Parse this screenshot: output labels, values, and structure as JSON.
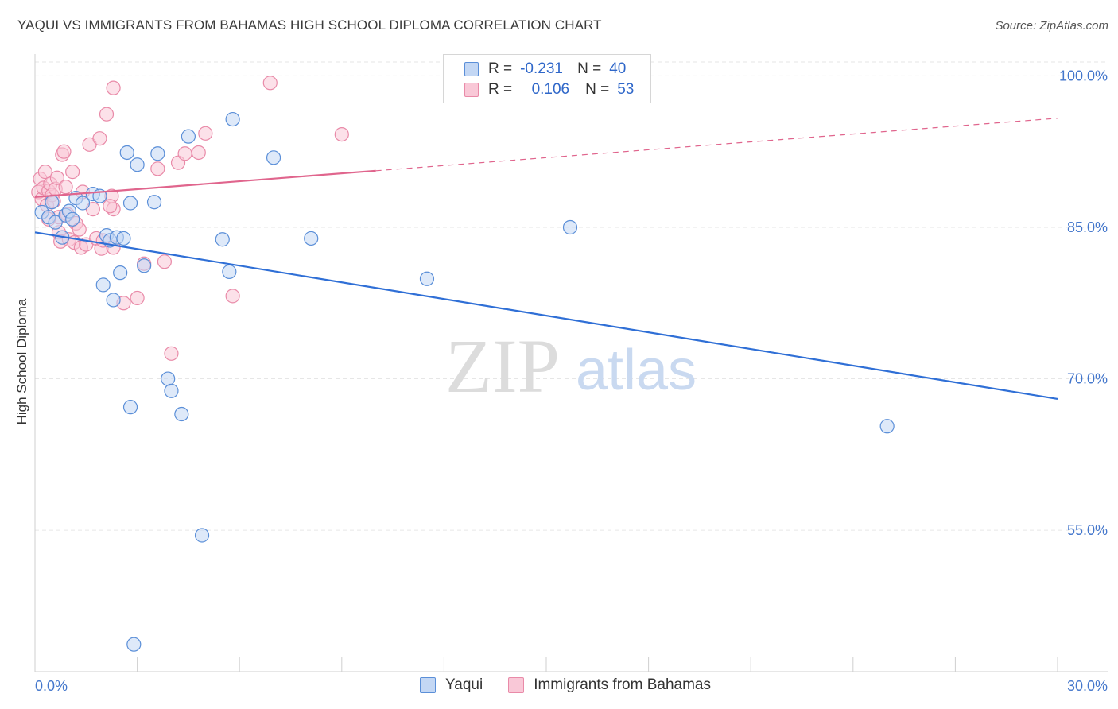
{
  "title": "YAQUI VS IMMIGRANTS FROM BAHAMAS HIGH SCHOOL DIPLOMA CORRELATION CHART",
  "source": "Source: ZipAtlas.com",
  "watermark": {
    "zip": "ZIP",
    "atlas": "atlas"
  },
  "colors": {
    "yaqui": "#5b8fd8",
    "yaqui_fill": "#c3d7f4",
    "yaqui_line": "#2f6fd6",
    "bahamas": "#e98aa8",
    "bahamas_fill": "#f9c8d7",
    "bahamas_line": "#e0658d",
    "axis_text": "#4477cc"
  },
  "legend": {
    "rows": [
      {
        "r_label": "R =",
        "r_value": "-0.231",
        "n_label": "N =",
        "n_value": "40"
      },
      {
        "r_label": "R =",
        "r_value": "0.106",
        "n_label": "N =",
        "n_value": "53"
      }
    ]
  },
  "bottom_legend": [
    "Yaqui",
    "Immigrants from Bahamas"
  ],
  "chart_data": {
    "type": "scatter",
    "xlabel": "",
    "ylabel": "High School Diploma",
    "xlim": [
      0,
      30
    ],
    "ylim": [
      41,
      102
    ],
    "x_tick_labels": [
      "0.0%",
      "30.0%"
    ],
    "y_tick_labels": [
      "100.0%",
      "85.0%",
      "70.0%",
      "55.0%"
    ],
    "y_ticks": [
      100,
      85,
      70,
      55
    ],
    "series": [
      {
        "name": "Yaqui",
        "points": [
          [
            0.2,
            86.5
          ],
          [
            0.4,
            86.0
          ],
          [
            0.5,
            87.5
          ],
          [
            0.6,
            85.5
          ],
          [
            0.9,
            86.2
          ],
          [
            0.8,
            84.0
          ],
          [
            1.0,
            86.6
          ],
          [
            1.1,
            85.8
          ],
          [
            1.2,
            87.9
          ],
          [
            1.4,
            87.4
          ],
          [
            1.7,
            88.3
          ],
          [
            1.9,
            88.1
          ],
          [
            2.1,
            84.2
          ],
          [
            2.2,
            83.7
          ],
          [
            2.4,
            84.0
          ],
          [
            2.3,
            77.8
          ],
          [
            2.5,
            80.5
          ],
          [
            2.6,
            83.9
          ],
          [
            2.0,
            79.3
          ],
          [
            2.7,
            92.4
          ],
          [
            2.8,
            87.4
          ],
          [
            3.0,
            91.2
          ],
          [
            3.2,
            81.2
          ],
          [
            3.5,
            87.5
          ],
          [
            3.6,
            92.3
          ],
          [
            3.9,
            70.0
          ],
          [
            4.0,
            68.8
          ],
          [
            4.3,
            66.5
          ],
          [
            4.5,
            94.0
          ],
          [
            2.8,
            67.2
          ],
          [
            4.9,
            54.5
          ],
          [
            5.5,
            83.8
          ],
          [
            5.7,
            80.6
          ],
          [
            5.8,
            95.7
          ],
          [
            7.0,
            91.9
          ],
          [
            8.1,
            83.9
          ],
          [
            11.5,
            79.9
          ],
          [
            15.7,
            85.0
          ],
          [
            25.0,
            65.3
          ],
          [
            2.9,
            43.7
          ]
        ],
        "trend": {
          "x": [
            0,
            30
          ],
          "y": [
            84.5,
            68.0
          ]
        }
      },
      {
        "name": "Immigrants from Bahamas",
        "points": [
          [
            0.1,
            88.5
          ],
          [
            0.15,
            89.8
          ],
          [
            0.2,
            87.8
          ],
          [
            0.25,
            88.9
          ],
          [
            0.3,
            90.5
          ],
          [
            0.35,
            87.2
          ],
          [
            0.4,
            88.6
          ],
          [
            0.45,
            89.3
          ],
          [
            0.5,
            88.2
          ],
          [
            0.55,
            87.6
          ],
          [
            0.6,
            88.8
          ],
          [
            0.65,
            89.9
          ],
          [
            0.7,
            84.5
          ],
          [
            0.75,
            83.6
          ],
          [
            0.8,
            92.2
          ],
          [
            0.85,
            92.5
          ],
          [
            0.9,
            89.0
          ],
          [
            0.95,
            86.3
          ],
          [
            1.0,
            83.8
          ],
          [
            1.1,
            90.5
          ],
          [
            1.15,
            83.5
          ],
          [
            1.2,
            85.4
          ],
          [
            1.3,
            84.8
          ],
          [
            1.35,
            83.0
          ],
          [
            1.4,
            88.5
          ],
          [
            1.5,
            83.3
          ],
          [
            1.6,
            93.2
          ],
          [
            1.7,
            86.8
          ],
          [
            1.8,
            83.9
          ],
          [
            1.9,
            93.8
          ],
          [
            1.95,
            82.9
          ],
          [
            2.0,
            83.7
          ],
          [
            2.1,
            96.2
          ],
          [
            2.3,
            98.8
          ],
          [
            2.3,
            86.8
          ],
          [
            2.25,
            88.1
          ],
          [
            2.2,
            87.1
          ],
          [
            2.3,
            83.0
          ],
          [
            2.6,
            77.5
          ],
          [
            3.0,
            78.0
          ],
          [
            3.2,
            81.4
          ],
          [
            3.6,
            90.8
          ],
          [
            3.8,
            81.6
          ],
          [
            4.0,
            72.5
          ],
          [
            4.2,
            91.4
          ],
          [
            4.4,
            92.3
          ],
          [
            4.8,
            92.4
          ],
          [
            5.0,
            94.3
          ],
          [
            5.8,
            78.2
          ],
          [
            6.9,
            99.3
          ],
          [
            9.0,
            94.2
          ],
          [
            0.7,
            86.0
          ],
          [
            0.4,
            85.8
          ]
        ],
        "trend": {
          "x": [
            0,
            10
          ],
          "y": [
            88.0,
            90.6
          ]
        },
        "trend_dashed": {
          "x": [
            10,
            30
          ],
          "y": [
            90.6,
            95.8
          ]
        }
      }
    ]
  }
}
